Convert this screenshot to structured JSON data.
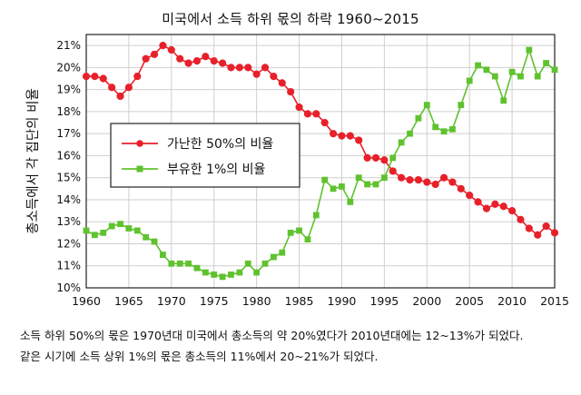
{
  "chart_data": {
    "type": "line",
    "title": "미국에서 소득 하위 몫의 하락 1960~2015",
    "ylabel": "총소득에서 각 집단의 비율",
    "xlabel": "",
    "xlim": [
      1960,
      2015
    ],
    "ylim": [
      10,
      21.5
    ],
    "x_ticks": [
      "1960",
      "1965",
      "1970",
      "1975",
      "1980",
      "1985",
      "1990",
      "1995",
      "2000",
      "2005",
      "2010",
      "2015"
    ],
    "y_ticks": [
      "10%",
      "11%",
      "12%",
      "13%",
      "14%",
      "15%",
      "16%",
      "17%",
      "18%",
      "19%",
      "20%",
      "21%"
    ],
    "grid": true,
    "legend_position": "center-left",
    "x": [
      1960,
      1961,
      1962,
      1963,
      1964,
      1965,
      1966,
      1967,
      1968,
      1969,
      1970,
      1971,
      1972,
      1973,
      1974,
      1975,
      1976,
      1977,
      1978,
      1979,
      1980,
      1981,
      1982,
      1983,
      1984,
      1985,
      1986,
      1987,
      1988,
      1989,
      1990,
      1991,
      1992,
      1993,
      1994,
      1995,
      1996,
      1997,
      1998,
      1999,
      2000,
      2001,
      2002,
      2003,
      2004,
      2005,
      2006,
      2007,
      2008,
      2009,
      2010,
      2011,
      2012,
      2013,
      2014,
      2015
    ],
    "series": [
      {
        "name": "가난한 50%의 비율",
        "color": "#e8202a",
        "marker": "circle",
        "values": [
          19.6,
          19.6,
          19.5,
          19.1,
          18.7,
          19.1,
          19.6,
          20.4,
          20.6,
          21.0,
          20.8,
          20.4,
          20.2,
          20.3,
          20.5,
          20.3,
          20.2,
          20.0,
          20.0,
          20.0,
          19.7,
          20.0,
          19.6,
          19.3,
          18.9,
          18.2,
          17.9,
          17.9,
          17.5,
          17.0,
          16.9,
          16.9,
          16.7,
          15.9,
          15.9,
          15.8,
          15.3,
          15.0,
          14.9,
          14.9,
          14.8,
          14.7,
          15.0,
          14.8,
          14.5,
          14.2,
          13.9,
          13.6,
          13.8,
          13.7,
          13.5,
          13.1,
          12.7,
          12.4,
          12.8,
          12.5
        ]
      },
      {
        "name": "부유한 1%의 비율",
        "color": "#5fc22e",
        "marker": "square",
        "values": [
          12.6,
          12.4,
          12.5,
          12.8,
          12.9,
          12.7,
          12.6,
          12.3,
          12.1,
          11.5,
          11.1,
          11.1,
          11.1,
          10.9,
          10.7,
          10.6,
          10.5,
          10.6,
          10.7,
          11.1,
          10.7,
          11.1,
          11.4,
          11.6,
          12.5,
          12.6,
          12.2,
          13.3,
          14.9,
          14.5,
          14.6,
          13.9,
          15.0,
          14.7,
          14.7,
          15.0,
          15.9,
          16.6,
          17.0,
          17.7,
          18.3,
          17.3,
          17.1,
          17.2,
          18.3,
          19.4,
          20.1,
          19.9,
          19.6,
          18.5,
          19.8,
          19.6,
          20.8,
          19.6,
          20.2,
          19.9
        ]
      }
    ]
  },
  "caption": {
    "line1": "소득 하위 50%의 몫은 1970년대 미국에서 총소득의 약 20%였다가 2010년대에는 12~13%가 되었다.",
    "line2": "같은 시기에 소득 상위 1%의 몫은 총소득의 11%에서 20~21%가 되었다."
  }
}
